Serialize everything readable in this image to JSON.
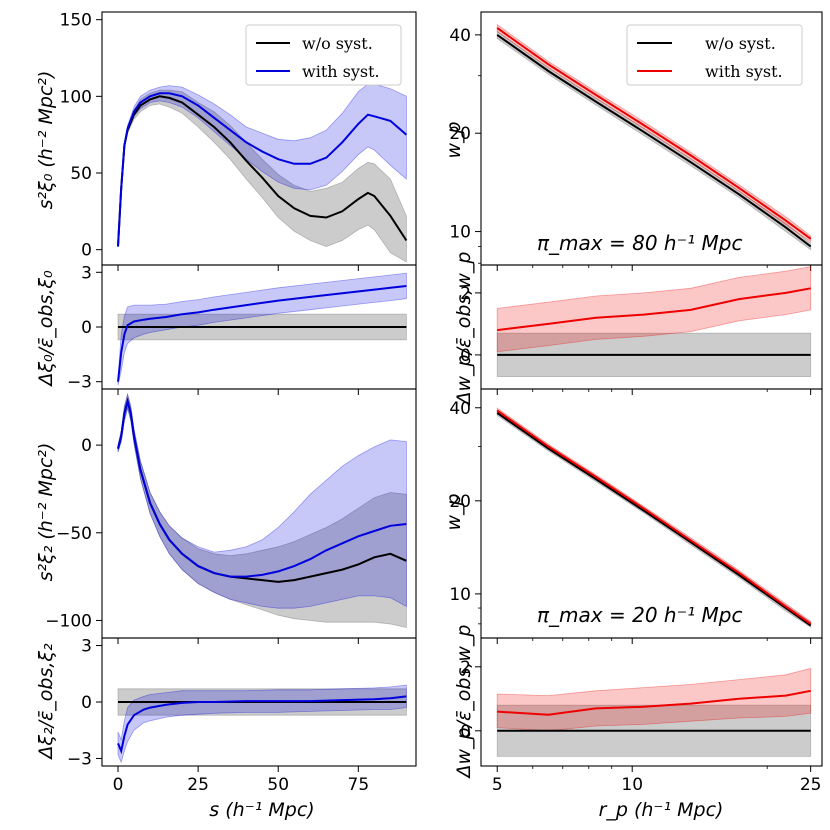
{
  "figure": {
    "left_xlabel": "s (h⁻¹ Mpc)",
    "right_xlabel": "r_p (h⁻¹ Mpc)"
  },
  "legend": {
    "left": [
      {
        "label": "w/o syst.",
        "color": "#000000"
      },
      {
        "label": "with syst.",
        "color": "#0000dd"
      }
    ],
    "right": [
      {
        "label": "w/o syst.",
        "color": "#000000"
      },
      {
        "label": "with syst.",
        "color": "#ee0000"
      }
    ]
  },
  "annotations": {
    "pi80": "π_max = 80 h⁻¹ Mpc",
    "pi20": "π_max = 20 h⁻¹ Mpc"
  },
  "chart_data": [
    {
      "id": "xi0",
      "type": "line",
      "ylabel": "s²ξ₀ (h⁻² Mpc²)",
      "xlim": [
        -5,
        93
      ],
      "ylim": [
        -10,
        155
      ],
      "xticks": [
        0,
        25,
        50,
        75
      ],
      "yticks": [
        0,
        50,
        100,
        150
      ],
      "x": [
        0,
        1,
        2,
        3,
        5,
        7,
        10,
        13,
        16,
        20,
        25,
        30,
        35,
        40,
        45,
        50,
        55,
        60,
        65,
        70,
        75,
        78,
        80,
        85,
        90
      ],
      "series": [
        {
          "name": "w/o syst.",
          "color": "#000000",
          "values": [
            2,
            40,
            68,
            78,
            88,
            94,
            98,
            100,
            99,
            96,
            88,
            80,
            70,
            58,
            47,
            35,
            27,
            22,
            21,
            25,
            33,
            37,
            35,
            22,
            6
          ],
          "lower": [
            2,
            40,
            66,
            76,
            85,
            90,
            94,
            95,
            93,
            89,
            80,
            70,
            59,
            46,
            34,
            21,
            12,
            6,
            2,
            6,
            13,
            16,
            13,
            -2,
            -8
          ],
          "upper": [
            2,
            40,
            70,
            80,
            91,
            98,
            102,
            104,
            104,
            103,
            96,
            90,
            81,
            70,
            59,
            49,
            42,
            38,
            40,
            44,
            53,
            57,
            56,
            46,
            22
          ]
        },
        {
          "name": "with syst.",
          "color": "#0000dd",
          "values": [
            2,
            40,
            68,
            79,
            90,
            96,
            100,
            102,
            102,
            100,
            94,
            86,
            78,
            70,
            64,
            59,
            56,
            56,
            60,
            70,
            82,
            88,
            87,
            84,
            75
          ],
          "lower": [
            2,
            40,
            66,
            77,
            87,
            92,
            96,
            97,
            96,
            93,
            86,
            77,
            68,
            59,
            51,
            44,
            40,
            39,
            42,
            51,
            62,
            67,
            65,
            55,
            46
          ],
          "upper": [
            2,
            40,
            70,
            81,
            93,
            100,
            104,
            106,
            107,
            106,
            101,
            95,
            88,
            80,
            76,
            72,
            71,
            73,
            78,
            89,
            103,
            108,
            108,
            105,
            100
          ]
        }
      ]
    },
    {
      "id": "dxi0",
      "type": "line",
      "ylabel": "Δξ₀/ε̄_obs,ξ₀",
      "xlim": [
        -5,
        93
      ],
      "ylim": [
        -3.4,
        3.4
      ],
      "xticks": [
        0,
        25,
        50,
        75
      ],
      "yticks": [
        -3,
        0,
        3
      ],
      "x": [
        0,
        1,
        2,
        3,
        5,
        8,
        10,
        15,
        20,
        25,
        30,
        40,
        50,
        60,
        70,
        80,
        85,
        90
      ],
      "series": [
        {
          "name": "w/o syst.",
          "color": "#000000",
          "values": [
            0,
            0,
            0,
            0,
            0,
            0,
            0,
            0,
            0,
            0,
            0,
            0,
            0,
            0,
            0,
            0,
            0,
            0
          ],
          "lower": [
            -0.7,
            -0.7,
            -0.7,
            -0.7,
            -0.7,
            -0.7,
            -0.7,
            -0.7,
            -0.7,
            -0.7,
            -0.7,
            -0.7,
            -0.7,
            -0.7,
            -0.7,
            -0.7,
            -0.7,
            -0.7
          ],
          "upper": [
            0.7,
            0.7,
            0.7,
            0.7,
            0.7,
            0.7,
            0.7,
            0.7,
            0.7,
            0.7,
            0.7,
            0.7,
            0.7,
            0.7,
            0.7,
            0.7,
            0.7,
            0.7
          ]
        },
        {
          "name": "with syst.",
          "color": "#0000dd",
          "values": [
            -3,
            -1.4,
            -0.4,
            0.1,
            0.3,
            0.4,
            0.45,
            0.55,
            0.7,
            0.8,
            0.95,
            1.2,
            1.45,
            1.65,
            1.85,
            2.05,
            2.15,
            2.25
          ],
          "lower": [
            -3.2,
            -2.4,
            -1.4,
            -0.9,
            -0.6,
            -0.4,
            -0.3,
            -0.15,
            0.0,
            0.1,
            0.25,
            0.5,
            0.75,
            0.95,
            1.15,
            1.35,
            1.45,
            1.55
          ],
          "upper": [
            -2.8,
            -0.4,
            0.6,
            1.1,
            1.2,
            1.2,
            1.2,
            1.25,
            1.4,
            1.5,
            1.65,
            1.9,
            2.15,
            2.35,
            2.55,
            2.75,
            2.85,
            2.95
          ]
        }
      ]
    },
    {
      "id": "xi2",
      "type": "line",
      "ylabel": "s²ξ₂ (h⁻² Mpc²)",
      "xlim": [
        -5,
        93
      ],
      "ylim": [
        -110,
        32
      ],
      "xticks": [
        0,
        25,
        50,
        75
      ],
      "yticks": [
        -100,
        -50,
        0
      ],
      "x": [
        0,
        1,
        2,
        3,
        4,
        5,
        7,
        10,
        13,
        16,
        20,
        25,
        30,
        35,
        40,
        45,
        50,
        55,
        60,
        65,
        70,
        75,
        80,
        85,
        90
      ],
      "series": [
        {
          "name": "w/o syst.",
          "color": "#000000",
          "values": [
            -2,
            5,
            18,
            25,
            18,
            5,
            -14,
            -33,
            -45,
            -54,
            -62,
            -69,
            -73,
            -75,
            -76,
            -77,
            -78,
            -77,
            -75,
            -73,
            -71,
            -68,
            -64,
            -62,
            -66
          ],
          "lower": [
            -4,
            2,
            14,
            21,
            14,
            1,
            -19,
            -39,
            -52,
            -62,
            -71,
            -79,
            -84,
            -88,
            -91,
            -94,
            -97,
            -99,
            -100,
            -101,
            -101,
            -101,
            -101,
            -102,
            -104
          ],
          "upper": [
            0,
            8,
            22,
            29,
            22,
            9,
            -9,
            -27,
            -38,
            -46,
            -53,
            -59,
            -62,
            -63,
            -62,
            -60,
            -58,
            -55,
            -51,
            -47,
            -42,
            -36,
            -30,
            -27,
            -28
          ]
        },
        {
          "name": "with syst.",
          "color": "#0000dd",
          "values": [
            -2,
            5,
            18,
            25,
            18,
            5,
            -14,
            -33,
            -45,
            -54,
            -62,
            -69,
            -73,
            -75,
            -75,
            -74,
            -72,
            -69,
            -65,
            -60,
            -56,
            -52,
            -49,
            -46,
            -45
          ],
          "lower": [
            -4,
            2,
            14,
            21,
            14,
            1,
            -19,
            -39,
            -52,
            -62,
            -71,
            -79,
            -84,
            -88,
            -90,
            -92,
            -93,
            -93,
            -92,
            -90,
            -88,
            -86,
            -86,
            -87,
            -92
          ],
          "upper": [
            0,
            8,
            22,
            29,
            22,
            9,
            -9,
            -27,
            -38,
            -46,
            -53,
            -58,
            -61,
            -60,
            -58,
            -54,
            -47,
            -38,
            -28,
            -20,
            -12,
            -6,
            -1,
            3,
            2
          ]
        }
      ]
    },
    {
      "id": "dxi2",
      "type": "line",
      "ylabel": "Δξ₂/ε̄_obs,ξ₂",
      "xlim": [
        -5,
        93
      ],
      "ylim": [
        -3.4,
        3.4
      ],
      "xticks": [
        0,
        25,
        50,
        75
      ],
      "yticks": [
        -3,
        0,
        3
      ],
      "x": [
        0,
        1,
        2,
        3,
        5,
        8,
        10,
        15,
        20,
        25,
        30,
        40,
        50,
        60,
        70,
        80,
        85,
        90
      ],
      "series": [
        {
          "name": "w/o syst.",
          "color": "#000000",
          "values": [
            0,
            0,
            0,
            0,
            0,
            0,
            0,
            0,
            0,
            0,
            0,
            0,
            0,
            0,
            0,
            0,
            0,
            0
          ],
          "lower": [
            -0.7,
            -0.7,
            -0.7,
            -0.7,
            -0.7,
            -0.7,
            -0.7,
            -0.7,
            -0.7,
            -0.7,
            -0.7,
            -0.7,
            -0.7,
            -0.7,
            -0.7,
            -0.7,
            -0.7,
            -0.7
          ],
          "upper": [
            0.7,
            0.7,
            0.7,
            0.7,
            0.7,
            0.7,
            0.7,
            0.7,
            0.7,
            0.7,
            0.7,
            0.7,
            0.7,
            0.7,
            0.7,
            0.7,
            0.7,
            0.7
          ]
        },
        {
          "name": "with syst.",
          "color": "#0000dd",
          "values": [
            -2.2,
            -2.6,
            -1.8,
            -1.2,
            -0.7,
            -0.4,
            -0.3,
            -0.15,
            -0.05,
            0.0,
            0.0,
            0.05,
            0.05,
            0.05,
            0.1,
            0.15,
            0.2,
            0.3
          ],
          "lower": [
            -2.8,
            -3.2,
            -2.6,
            -2.1,
            -1.5,
            -1.1,
            -1.0,
            -0.8,
            -0.7,
            -0.65,
            -0.6,
            -0.55,
            -0.55,
            -0.5,
            -0.45,
            -0.4,
            -0.4,
            -0.3
          ],
          "upper": [
            -1.6,
            -2.0,
            -1.0,
            -0.3,
            0.1,
            0.3,
            0.4,
            0.5,
            0.6,
            0.6,
            0.6,
            0.6,
            0.65,
            0.65,
            0.7,
            0.75,
            0.8,
            0.9
          ]
        }
      ]
    },
    {
      "id": "wp80",
      "type": "line",
      "xscale": "log",
      "yscale": "log",
      "ylabel": "w_p",
      "xlim": [
        4.6,
        26.5
      ],
      "ylim": [
        7.9,
        47
      ],
      "xticks": [
        5,
        10,
        25
      ],
      "yticks": [
        10,
        20,
        40
      ],
      "x": [
        5,
        6.5,
        8.3,
        10.6,
        13.5,
        17.3,
        22,
        25
      ],
      "series": [
        {
          "name": "w/o syst.",
          "color": "#000000",
          "values": [
            40,
            31,
            25,
            20.2,
            16.3,
            13.0,
            10.3,
            9.0
          ],
          "lower": [
            39,
            30.3,
            24.4,
            19.7,
            15.9,
            12.7,
            10.0,
            8.8
          ],
          "upper": [
            41,
            31.7,
            25.6,
            20.7,
            16.7,
            13.3,
            10.6,
            9.2
          ]
        },
        {
          "name": "with syst.",
          "color": "#ee0000",
          "values": [
            42,
            32.5,
            26.2,
            21.2,
            17.1,
            13.6,
            10.8,
            9.5
          ],
          "lower": [
            41,
            31.8,
            25.6,
            20.7,
            16.7,
            13.3,
            10.5,
            9.3
          ],
          "upper": [
            43,
            33.2,
            26.8,
            21.7,
            17.5,
            13.9,
            11.1,
            9.7
          ]
        }
      ]
    },
    {
      "id": "dwp80",
      "type": "line",
      "xscale": "log",
      "ylabel": "Δw_p/ε̄_obs,w_p",
      "xlim": [
        4.6,
        26.5
      ],
      "ylim": [
        -1.1,
        2.9
      ],
      "xticks": [
        5,
        10,
        25
      ],
      "yticks": [
        0,
        2
      ],
      "x": [
        5,
        6.5,
        8.3,
        10.6,
        13.5,
        17.3,
        22,
        25
      ],
      "series": [
        {
          "name": "w/o syst.",
          "color": "#000000",
          "values": [
            0,
            0,
            0,
            0,
            0,
            0,
            0,
            0
          ],
          "lower": [
            -0.7,
            -0.7,
            -0.7,
            -0.7,
            -0.7,
            -0.7,
            -0.7,
            -0.7
          ],
          "upper": [
            0.7,
            0.7,
            0.7,
            0.7,
            0.7,
            0.7,
            0.7,
            0.7
          ]
        },
        {
          "name": "with syst.",
          "color": "#ee0000",
          "values": [
            0.8,
            1.0,
            1.2,
            1.3,
            1.45,
            1.8,
            2.0,
            2.15
          ],
          "lower": [
            0.1,
            0.3,
            0.5,
            0.6,
            0.75,
            1.1,
            1.3,
            1.45
          ],
          "upper": [
            1.5,
            1.7,
            1.9,
            2.0,
            2.15,
            2.5,
            2.7,
            2.85
          ]
        }
      ]
    },
    {
      "id": "wp20",
      "type": "line",
      "xscale": "log",
      "yscale": "log",
      "ylabel": "w_p",
      "xlim": [
        4.6,
        26.5
      ],
      "ylim": [
        7.2,
        46
      ],
      "xticks": [
        5,
        10,
        25
      ],
      "yticks": [
        10,
        20,
        40
      ],
      "x": [
        5,
        6.5,
        8.3,
        10.6,
        13.5,
        17.3,
        22,
        25
      ],
      "series": [
        {
          "name": "w/o syst.",
          "color": "#000000",
          "values": [
            38.5,
            29.5,
            23.5,
            18.6,
            14.7,
            11.5,
            9.0,
            7.9
          ],
          "lower": [
            37.8,
            29.0,
            23.1,
            18.3,
            14.4,
            11.3,
            8.8,
            7.8
          ],
          "upper": [
            39.2,
            30.0,
            23.9,
            18.9,
            15.0,
            11.7,
            9.2,
            8.1
          ]
        },
        {
          "name": "with syst.",
          "color": "#ee0000",
          "values": [
            39.2,
            30.0,
            23.9,
            18.9,
            14.9,
            11.7,
            9.1,
            8.0
          ],
          "lower": [
            38.5,
            29.5,
            23.5,
            18.6,
            14.6,
            11.5,
            8.95,
            7.9
          ],
          "upper": [
            39.9,
            30.5,
            24.3,
            19.2,
            15.2,
            11.9,
            9.3,
            8.15
          ]
        }
      ]
    },
    {
      "id": "dwp20",
      "type": "line",
      "xscale": "log",
      "ylabel": "Δw_p/ε̄_obs,w_p",
      "xlim": [
        4.6,
        26.5
      ],
      "ylim": [
        -1.1,
        2.9
      ],
      "xticks": [
        5,
        10,
        25
      ],
      "yticks": [
        0,
        2
      ],
      "x": [
        5,
        6.5,
        8.3,
        10.6,
        13.5,
        17.3,
        22,
        25
      ],
      "series": [
        {
          "name": "w/o syst.",
          "color": "#000000",
          "values": [
            0,
            0,
            0,
            0,
            0,
            0,
            0,
            0
          ],
          "lower": [
            -0.8,
            -0.8,
            -0.8,
            -0.8,
            -0.8,
            -0.8,
            -0.8,
            -0.8
          ],
          "upper": [
            0.8,
            0.8,
            0.8,
            0.8,
            0.8,
            0.8,
            0.8,
            0.8
          ]
        },
        {
          "name": "with syst.",
          "color": "#ee0000",
          "values": [
            0.6,
            0.5,
            0.7,
            0.75,
            0.85,
            1.0,
            1.1,
            1.25
          ],
          "lower": [
            0.1,
            0.0,
            0.15,
            0.2,
            0.3,
            0.4,
            0.45,
            0.55
          ],
          "upper": [
            1.15,
            1.1,
            1.25,
            1.35,
            1.45,
            1.6,
            1.75,
            1.95
          ]
        }
      ]
    }
  ]
}
